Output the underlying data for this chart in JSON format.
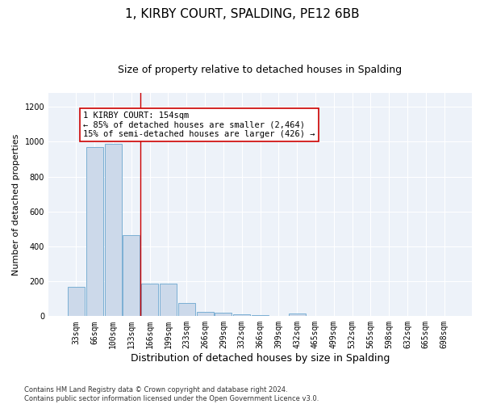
{
  "title": "1, KIRBY COURT, SPALDING, PE12 6BB",
  "subtitle": "Size of property relative to detached houses in Spalding",
  "xlabel": "Distribution of detached houses by size in Spalding",
  "ylabel": "Number of detached properties",
  "bar_color": "#ccd9ea",
  "bar_edge_color": "#7aafd4",
  "background_color": "#edf2f9",
  "categories": [
    "33sqm",
    "66sqm",
    "100sqm",
    "133sqm",
    "166sqm",
    "199sqm",
    "233sqm",
    "266sqm",
    "299sqm",
    "332sqm",
    "366sqm",
    "399sqm",
    "432sqm",
    "465sqm",
    "499sqm",
    "532sqm",
    "565sqm",
    "598sqm",
    "632sqm",
    "665sqm",
    "698sqm"
  ],
  "values": [
    170,
    970,
    990,
    465,
    185,
    185,
    75,
    25,
    20,
    12,
    5,
    0,
    15,
    0,
    0,
    0,
    0,
    0,
    0,
    0,
    0
  ],
  "vline_x": 3.5,
  "vline_color": "#cc0000",
  "annotation_line1": "1 KIRBY COURT: 154sqm",
  "annotation_line2": "← 85% of detached houses are smaller (2,464)",
  "annotation_line3": "15% of semi-detached houses are larger (426) →",
  "ylim": [
    0,
    1280
  ],
  "yticks": [
    0,
    200,
    400,
    600,
    800,
    1000,
    1200
  ],
  "footnote": "Contains HM Land Registry data © Crown copyright and database right 2024.\nContains public sector information licensed under the Open Government Licence v3.0.",
  "title_fontsize": 11,
  "subtitle_fontsize": 9,
  "tick_fontsize": 7,
  "ylabel_fontsize": 8,
  "xlabel_fontsize": 9,
  "annot_fontsize": 7.5,
  "footnote_fontsize": 6
}
